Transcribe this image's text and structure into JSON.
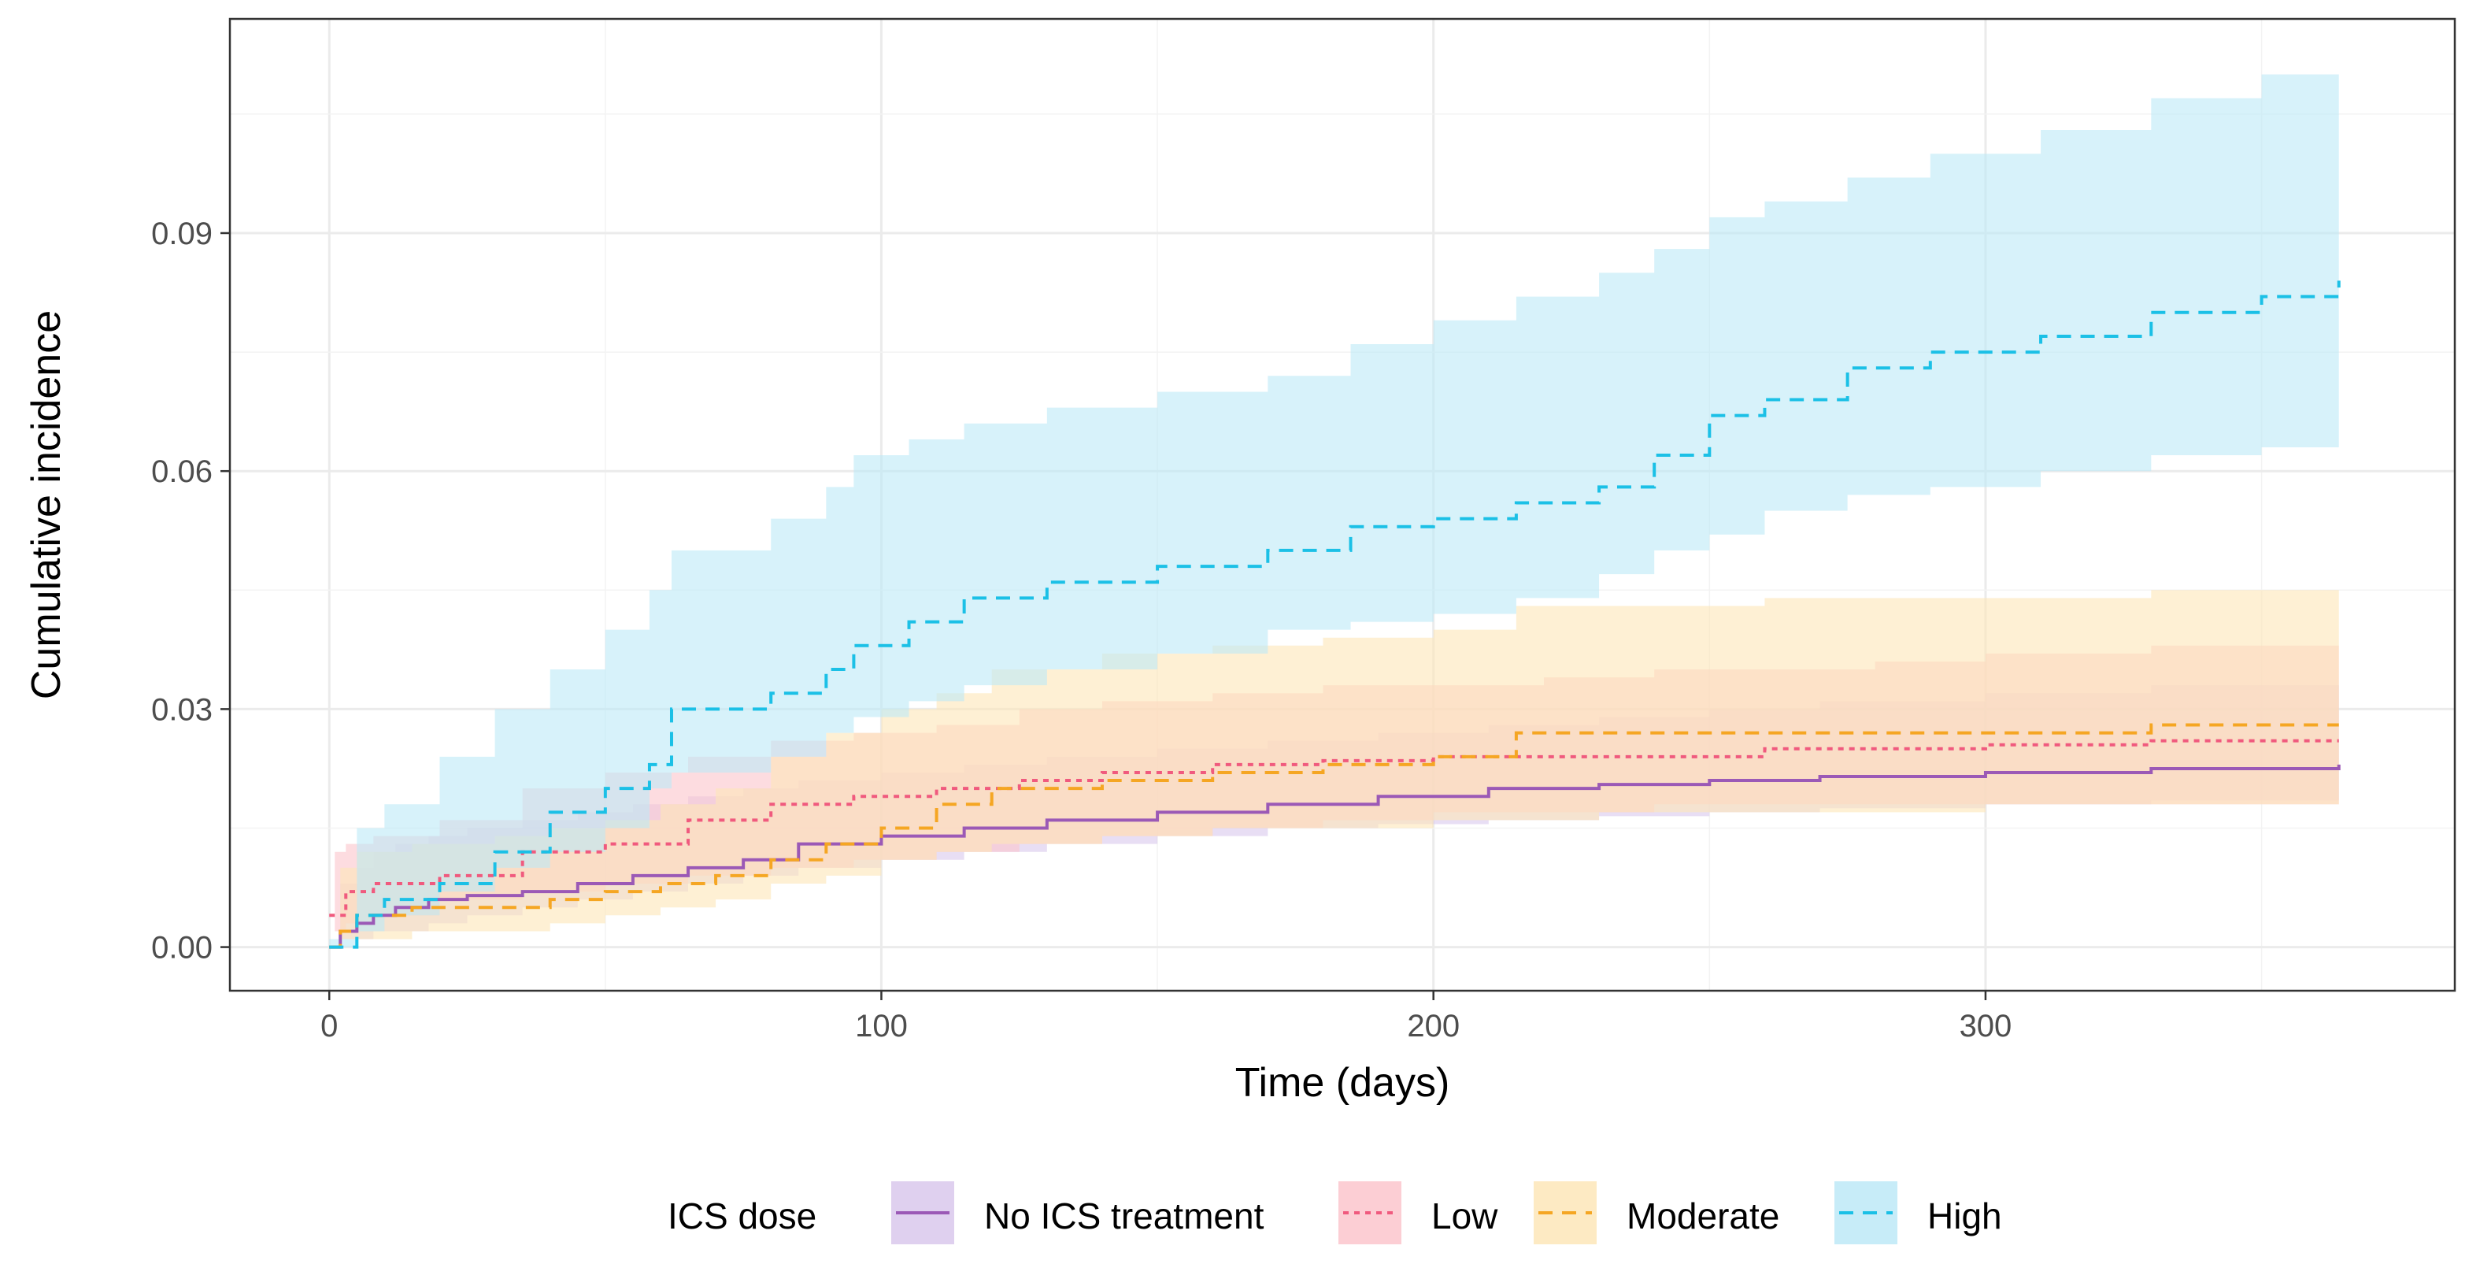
{
  "chart_data": {
    "type": "line",
    "title": "",
    "xlabel": "Time (days)",
    "ylabel": "Cumulative incidence",
    "xlim": [
      -18,
      385
    ],
    "ylim": [
      -0.0055,
      0.117
    ],
    "xticks": [
      0,
      100,
      200,
      300
    ],
    "yticks": [
      0.0,
      0.03,
      0.06,
      0.09
    ],
    "xtick_labels": [
      "0",
      "100",
      "200",
      "300"
    ],
    "ytick_labels": [
      "0.00",
      "0.03",
      "0.06",
      "0.09"
    ],
    "grid": true,
    "legend": {
      "title": "ICS dose",
      "position": "bottom"
    },
    "series": [
      {
        "name": "No ICS treatment",
        "color": "#9b59b6",
        "band_color": "#d9c8ec",
        "dash": "solid",
        "x": [
          0,
          2,
          5,
          8,
          12,
          18,
          25,
          35,
          45,
          55,
          65,
          75,
          85,
          100,
          115,
          130,
          150,
          170,
          190,
          210,
          230,
          250,
          270,
          300,
          330,
          364
        ],
        "y": [
          0,
          0.002,
          0.003,
          0.004,
          0.005,
          0.006,
          0.0065,
          0.007,
          0.008,
          0.009,
          0.01,
          0.011,
          0.013,
          0.014,
          0.015,
          0.016,
          0.017,
          0.018,
          0.019,
          0.02,
          0.0205,
          0.021,
          0.0215,
          0.022,
          0.0225,
          0.023
        ],
        "lower": [
          0,
          0.0,
          0.001,
          0.001,
          0.002,
          0.002,
          0.003,
          0.004,
          0.005,
          0.006,
          0.007,
          0.008,
          0.009,
          0.01,
          0.011,
          0.012,
          0.013,
          0.014,
          0.015,
          0.0155,
          0.016,
          0.0165,
          0.017,
          0.0175,
          0.018,
          0.0185
        ],
        "upper": [
          0,
          0.008,
          0.01,
          0.012,
          0.013,
          0.014,
          0.015,
          0.016,
          0.017,
          0.018,
          0.019,
          0.02,
          0.021,
          0.022,
          0.023,
          0.024,
          0.025,
          0.026,
          0.027,
          0.028,
          0.029,
          0.03,
          0.031,
          0.032,
          0.033,
          0.034
        ]
      },
      {
        "name": "Low",
        "color": "#f05a7e",
        "band_color": "#fcc5cc",
        "dash": "dotted",
        "x": [
          0,
          1,
          3,
          8,
          20,
          35,
          50,
          65,
          80,
          95,
          110,
          125,
          140,
          160,
          180,
          200,
          220,
          240,
          260,
          280,
          300,
          330,
          364
        ],
        "y": [
          0.004,
          0.004,
          0.007,
          0.008,
          0.009,
          0.012,
          0.013,
          0.016,
          0.018,
          0.019,
          0.02,
          0.021,
          0.022,
          0.023,
          0.0235,
          0.024,
          0.024,
          0.024,
          0.025,
          0.025,
          0.0255,
          0.026,
          0.026
        ],
        "lower": [
          0,
          0.0,
          0.002,
          0.003,
          0.004,
          0.006,
          0.007,
          0.008,
          0.009,
          0.01,
          0.011,
          0.012,
          0.013,
          0.014,
          0.015,
          0.016,
          0.017,
          0.017,
          0.018,
          0.018,
          0.018,
          0.018,
          0.018
        ],
        "upper": [
          0,
          0.012,
          0.013,
          0.014,
          0.016,
          0.02,
          0.022,
          0.024,
          0.026,
          0.027,
          0.028,
          0.03,
          0.031,
          0.032,
          0.033,
          0.033,
          0.034,
          0.035,
          0.035,
          0.036,
          0.037,
          0.038,
          0.039
        ]
      },
      {
        "name": "Moderate",
        "color": "#f5a623",
        "band_color": "#fde6b8",
        "dash": "dashed",
        "x": [
          0,
          2,
          5,
          15,
          30,
          40,
          50,
          60,
          70,
          80,
          90,
          100,
          110,
          120,
          140,
          160,
          180,
          200,
          215,
          230,
          260,
          300,
          330,
          364
        ],
        "y": [
          0,
          0.002,
          0.004,
          0.005,
          0.005,
          0.006,
          0.007,
          0.008,
          0.009,
          0.011,
          0.013,
          0.015,
          0.018,
          0.02,
          0.021,
          0.022,
          0.023,
          0.024,
          0.027,
          0.027,
          0.027,
          0.027,
          0.028,
          0.028
        ],
        "lower": [
          0,
          0.0,
          0.001,
          0.001,
          0.002,
          0.002,
          0.003,
          0.004,
          0.005,
          0.006,
          0.008,
          0.009,
          0.011,
          0.012,
          0.013,
          0.014,
          0.015,
          0.015,
          0.016,
          0.016,
          0.017,
          0.017,
          0.018,
          0.018
        ],
        "upper": [
          0,
          0.01,
          0.012,
          0.013,
          0.014,
          0.015,
          0.016,
          0.018,
          0.02,
          0.024,
          0.027,
          0.03,
          0.032,
          0.035,
          0.037,
          0.038,
          0.039,
          0.04,
          0.043,
          0.043,
          0.044,
          0.044,
          0.045,
          0.045
        ]
      },
      {
        "name": "High",
        "color": "#1bc0e6",
        "band_color": "#bde9f7",
        "dash": "dashed",
        "x": [
          0,
          5,
          10,
          20,
          30,
          40,
          50,
          58,
          62,
          80,
          90,
          95,
          105,
          115,
          130,
          150,
          170,
          185,
          200,
          215,
          230,
          240,
          250,
          260,
          275,
          290,
          310,
          330,
          350,
          364
        ],
        "y": [
          0,
          0.004,
          0.006,
          0.008,
          0.012,
          0.017,
          0.02,
          0.023,
          0.03,
          0.032,
          0.035,
          0.038,
          0.041,
          0.044,
          0.046,
          0.048,
          0.05,
          0.053,
          0.054,
          0.056,
          0.058,
          0.062,
          0.067,
          0.069,
          0.073,
          0.075,
          0.077,
          0.08,
          0.082,
          0.084
        ],
        "lower": [
          0,
          0.001,
          0.002,
          0.004,
          0.007,
          0.01,
          0.012,
          0.015,
          0.02,
          0.022,
          0.024,
          0.027,
          0.029,
          0.031,
          0.033,
          0.035,
          0.037,
          0.04,
          0.041,
          0.042,
          0.044,
          0.047,
          0.05,
          0.052,
          0.055,
          0.057,
          0.058,
          0.06,
          0.062,
          0.063
        ],
        "upper": [
          0,
          0.015,
          0.018,
          0.024,
          0.03,
          0.035,
          0.04,
          0.045,
          0.05,
          0.054,
          0.058,
          0.062,
          0.064,
          0.066,
          0.068,
          0.07,
          0.072,
          0.076,
          0.079,
          0.082,
          0.085,
          0.088,
          0.092,
          0.094,
          0.097,
          0.1,
          0.103,
          0.107,
          0.11,
          0.112
        ]
      }
    ]
  }
}
